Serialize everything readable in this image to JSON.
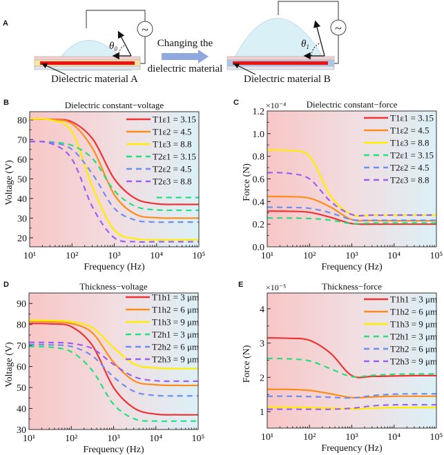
{
  "panel_a": {
    "label": "A",
    "left_caption": "Dielectric material A",
    "right_caption": "Dielectric material B",
    "arrow_text_line1": "Changing the",
    "arrow_text_line2": "dielectric material",
    "angle_left": "θ",
    "angle_left_sub": "0",
    "angle_right": "θ",
    "angle_right_sub": "1",
    "source_symbol": "~",
    "colors": {
      "droplet": "#d9f0f7",
      "electrode": "#ee1111",
      "dielectric_a": "#fbe6a0",
      "dielectric_b": "#a9c9ea",
      "arrow": "#8fa9e0"
    }
  },
  "colors": {
    "bg_left": "#f8c6c6",
    "bg_right": "#dcf0f7"
  },
  "chart_data": [
    {
      "panel": "B",
      "type": "line",
      "title": "Dielectric constant−voltage",
      "xlabel": "Frequency (Hz)",
      "ylabel": "Voltage (V)",
      "xscale": "log",
      "xlim": [
        10,
        100000
      ],
      "ylim": [
        15.4,
        84.2
      ],
      "x_tick_labels": [
        "10¹",
        "10²",
        "10³",
        "10⁴",
        "10⁵"
      ],
      "y_ticks": [
        20,
        30,
        40,
        50,
        60,
        70,
        80
      ],
      "y_tick_labels": [
        "20",
        "30",
        "40",
        "50",
        "60",
        "70",
        "80"
      ],
      "legend": "top-right",
      "grid": false,
      "x": [
        10,
        31.6,
        100,
        316,
        1000,
        3162,
        10000,
        31623,
        100000
      ],
      "series": [
        {
          "name": "T1ε1 = 3.15",
          "color": "#ee3333",
          "dash": false,
          "values": [
            80.5,
            80.3,
            79,
            70,
            50,
            40,
            37.3,
            37,
            37
          ]
        },
        {
          "name": "T1ε2 = 4.5",
          "color": "#ff8c1a",
          "dash": false,
          "values": [
            80.5,
            80.2,
            78,
            65,
            42,
            32,
            30.2,
            30,
            30
          ]
        },
        {
          "name": "T1ε3 = 8.8",
          "color": "#ffee00",
          "dash": false,
          "values": [
            80.5,
            80,
            74,
            45,
            24,
            19.5,
            19,
            19,
            19
          ]
        },
        {
          "name": "T2ε1 = 3.15",
          "color": "#22e07a",
          "dash": true,
          "values": [
            69,
            68.8,
            67,
            60,
            44,
            36,
            34.2,
            34,
            34
          ]
        },
        {
          "name": "T2ε2 = 4.5",
          "color": "#6a8ff0",
          "dash": true,
          "values": [
            69,
            68.5,
            65,
            52,
            35,
            29,
            28,
            28,
            28
          ]
        },
        {
          "name": "T2ε3 = 8.8",
          "color": "#9b5ef0",
          "dash": true,
          "values": [
            69,
            68,
            60,
            35,
            20,
            18,
            18,
            18,
            18
          ]
        },
        {
          "color": "#22e07a",
          "dash": true,
          "values": [
            null,
            null,
            null,
            null,
            null,
            null,
            40.5,
            40.5,
            40.5
          ]
        }
      ]
    },
    {
      "panel": "C",
      "type": "line",
      "title": "Dielectric constant−force",
      "xlabel": "Frequency (Hz)",
      "ylabel": "Force (N)",
      "y_multiplier": "×10⁻⁴",
      "xscale": "log",
      "xlim": [
        10,
        100000
      ],
      "ylim": [
        0,
        1.2
      ],
      "x_tick_labels": [
        "10¹",
        "10²",
        "10³",
        "10⁴",
        "10⁵"
      ],
      "y_ticks": [
        0,
        0.2,
        0.4,
        0.6,
        0.8,
        1.0,
        1.2
      ],
      "y_tick_labels": [
        "0.0",
        "0.2",
        "0.4",
        "0.6",
        "0.8",
        "1.0",
        "1.2"
      ],
      "legend": "top-right",
      "grid": false,
      "x": [
        10,
        31.6,
        100,
        316,
        1000,
        3162,
        10000,
        31623,
        100000
      ],
      "series": [
        {
          "name": "T1ε1 = 3.15",
          "color": "#ee3333",
          "dash": false,
          "values": [
            0.315,
            0.314,
            0.305,
            0.26,
            0.205,
            0.2,
            0.2,
            0.2,
            0.2
          ]
        },
        {
          "name": "T1ε2 = 4.5",
          "color": "#ff8c1a",
          "dash": false,
          "values": [
            0.445,
            0.443,
            0.43,
            0.35,
            0.24,
            0.232,
            0.23,
            0.23,
            0.23
          ]
        },
        {
          "name": "T1ε3 = 8.8",
          "color": "#ffee00",
          "dash": false,
          "values": [
            0.855,
            0.85,
            0.8,
            0.45,
            0.285,
            0.28,
            0.28,
            0.28,
            0.28
          ]
        },
        {
          "name": "T2ε1 = 3.15",
          "color": "#22e07a",
          "dash": true,
          "values": [
            0.255,
            0.254,
            0.25,
            0.235,
            0.205,
            0.21,
            0.21,
            0.21,
            0.21
          ]
        },
        {
          "name": "T2ε2 = 4.5",
          "color": "#6a8ff0",
          "dash": true,
          "values": [
            0.35,
            0.348,
            0.34,
            0.3,
            0.24,
            0.235,
            0.235,
            0.235,
            0.235
          ]
        },
        {
          "name": "T2ε3 = 8.8",
          "color": "#9b5ef0",
          "dash": true,
          "values": [
            0.655,
            0.65,
            0.6,
            0.4,
            0.285,
            0.28,
            0.28,
            0.28,
            0.28
          ]
        }
      ]
    },
    {
      "panel": "D",
      "type": "line",
      "title": "Thickness−voltage",
      "xlabel": "Frequency (Hz)",
      "ylabel": "Voltage (V)",
      "xscale": "log",
      "xlim": [
        10,
        100000
      ],
      "ylim": [
        30,
        95
      ],
      "x_tick_labels": [
        "10¹",
        "10²",
        "10³",
        "10⁴",
        "10⁵"
      ],
      "y_ticks": [
        30,
        40,
        50,
        60,
        70,
        80,
        90
      ],
      "y_tick_labels": [
        "30",
        "40",
        "50",
        "60",
        "70",
        "80",
        "90"
      ],
      "legend": "top-right",
      "grid": false,
      "x": [
        10,
        31.6,
        100,
        316,
        1000,
        3162,
        10000,
        31623,
        100000
      ],
      "series": [
        {
          "name": "T1h1 = 3 μm",
          "color": "#ee3333",
          "dash": false,
          "values": [
            80.5,
            80.3,
            79,
            70,
            50,
            40,
            37.3,
            37,
            37
          ]
        },
        {
          "name": "T1h2 = 6 μm",
          "color": "#ff8c1a",
          "dash": false,
          "values": [
            81.5,
            81.3,
            80.5,
            76,
            62,
            53,
            51.3,
            51,
            51
          ]
        },
        {
          "name": "T1h3 = 9 μm",
          "color": "#ffee00",
          "dash": false,
          "values": [
            82,
            81.9,
            81.3,
            78.5,
            69,
            61,
            59.3,
            59,
            59
          ]
        },
        {
          "name": "T2h1 = 3 μm",
          "color": "#22e07a",
          "dash": true,
          "values": [
            69.5,
            69.2,
            67,
            58,
            42,
            35,
            34,
            34,
            34
          ]
        },
        {
          "name": "T2h2 = 6 μm",
          "color": "#6a8ff0",
          "dash": true,
          "values": [
            70.5,
            70.3,
            69.5,
            65,
            55,
            48,
            46.2,
            46,
            46
          ]
        },
        {
          "name": "T2h3 = 9 μm",
          "color": "#9b5ef0",
          "dash": true,
          "values": [
            71.5,
            71.4,
            71,
            68.5,
            61,
            55,
            53.2,
            53,
            53
          ]
        }
      ]
    },
    {
      "panel": "E",
      "type": "line",
      "title": "Thickness−force",
      "xlabel": "Frequency (Hz)",
      "ylabel": "Force (N)",
      "y_multiplier": "×10⁻⁵",
      "xscale": "log",
      "xlim": [
        10,
        100000
      ],
      "ylim": [
        0.52,
        4.46
      ],
      "x_tick_labels": [
        "10¹",
        "10²",
        "10³",
        "10⁴",
        "10⁵"
      ],
      "y_ticks": [
        1,
        2,
        3,
        4
      ],
      "y_tick_labels": [
        "1",
        "2",
        "3",
        "4"
      ],
      "legend": "top-right",
      "grid": false,
      "x": [
        10,
        31.6,
        100,
        316,
        1000,
        3162,
        10000,
        31623,
        100000
      ],
      "series": [
        {
          "name": "T1h1 = 3 μm",
          "color": "#ee3333",
          "dash": false,
          "values": [
            3.15,
            3.14,
            3.08,
            2.7,
            2.05,
            2.03,
            2.04,
            2.05,
            2.05
          ]
        },
        {
          "name": "T1h2 = 6 μm",
          "color": "#ff8c1a",
          "dash": false,
          "values": [
            1.65,
            1.65,
            1.62,
            1.52,
            1.41,
            1.43,
            1.45,
            1.45,
            1.45
          ]
        },
        {
          "name": "T1h3 = 9 μm",
          "color": "#ffee00",
          "dash": false,
          "values": [
            1.13,
            1.13,
            1.12,
            1.1,
            1.08,
            1.1,
            1.12,
            1.12,
            1.12
          ]
        },
        {
          "name": "T2h1 = 3 μm",
          "color": "#22e07a",
          "dash": true,
          "values": [
            2.55,
            2.54,
            2.48,
            2.25,
            2.02,
            2.06,
            2.09,
            2.1,
            2.1
          ]
        },
        {
          "name": "T2h2 = 6 μm",
          "color": "#6a8ff0",
          "dash": true,
          "values": [
            1.45,
            1.45,
            1.44,
            1.42,
            1.4,
            1.47,
            1.51,
            1.52,
            1.52
          ]
        },
        {
          "name": "T2h3 = 9 μm",
          "color": "#9b5ef0",
          "dash": true,
          "values": [
            1.07,
            1.07,
            1.07,
            1.07,
            1.1,
            1.17,
            1.2,
            1.2,
            1.2
          ]
        }
      ]
    }
  ]
}
